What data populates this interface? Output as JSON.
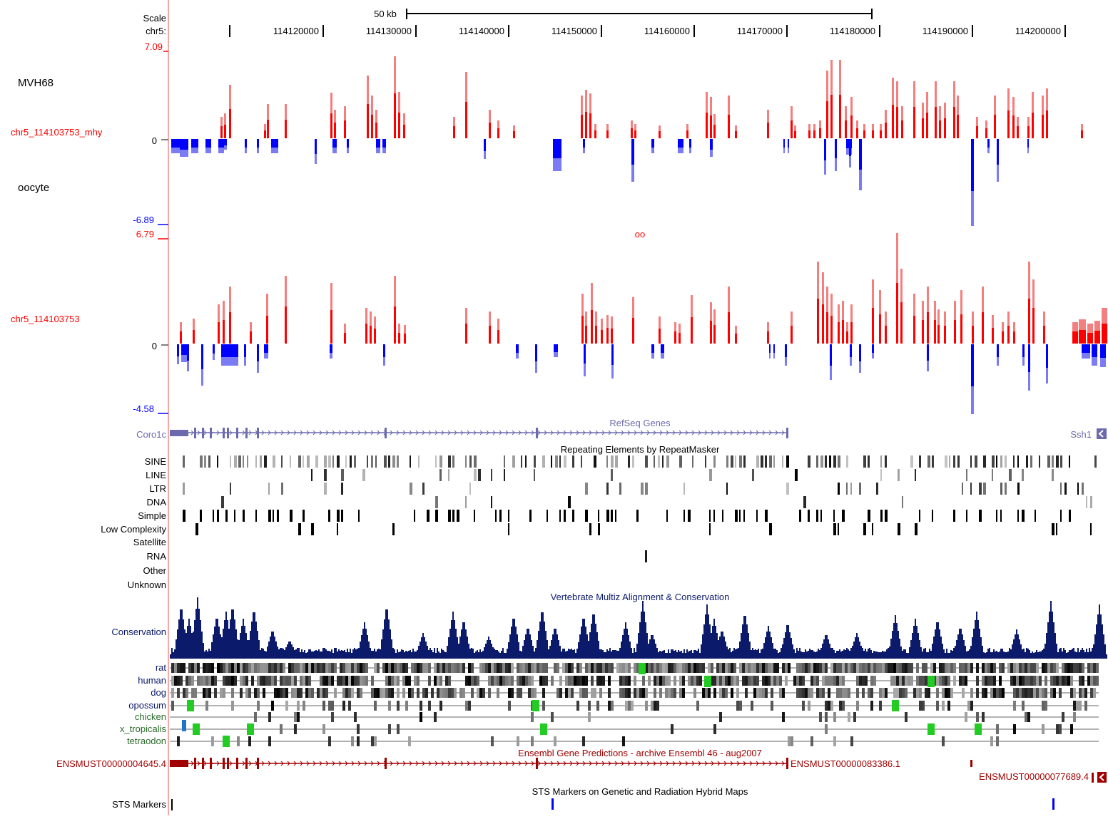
{
  "scale": {
    "label": "Scale",
    "bar_label": "50 kb"
  },
  "chrom": {
    "label": "chr5:",
    "positions": [
      "114120000",
      "114130000",
      "114140000",
      "114150000",
      "114160000",
      "114170000",
      "114180000",
      "114190000",
      "114200000"
    ]
  },
  "track1": {
    "side_label": "MVH68",
    "side_label2": "oocyte",
    "name": "chr5_114103753_mhy",
    "max": "7.09",
    "zero": "0",
    "min": "-6.89",
    "pos_color": "#ff0000",
    "neg_color": "#0000ff"
  },
  "track2": {
    "title": "oo",
    "name": "chr5_114103753",
    "max": "6.79",
    "zero": "0",
    "min": "-4.58",
    "pos_color": "#ff0000",
    "neg_color": "#0000ff"
  },
  "refseq": {
    "title": "RefSeq Genes",
    "gene_left": "Coro1c",
    "gene_right": "Ssh1",
    "color": "#6a6aad"
  },
  "rmsk": {
    "title": "Repeating Elements by RepeatMasker",
    "classes": [
      "SINE",
      "LINE",
      "LTR",
      "DNA",
      "Simple",
      "Low Complexity",
      "Satellite",
      "RNA",
      "Other",
      "Unknown"
    ]
  },
  "multiz": {
    "title": "Vertebrate Multiz Alignment & Conservation",
    "conservation_label": "Conservation",
    "species": [
      "rat",
      "human",
      "dog",
      "opossum",
      "chicken",
      "x_tropicalis",
      "tetraodon"
    ],
    "color": "#0b1a6b"
  },
  "ensembl": {
    "title": "Ensembl Gene Predictions - archive Ensembl 46 - aug2007",
    "gene_left": "ENSMUST00000004645.4",
    "gene_mid": "ENSMUST00000083386.1",
    "gene_right": "ENSMUST00000077689.4",
    "color": "#a00000"
  },
  "sts": {
    "title": "STS Markers on Genetic and Radiation Hybrid Maps",
    "label": "STS Markers"
  }
}
